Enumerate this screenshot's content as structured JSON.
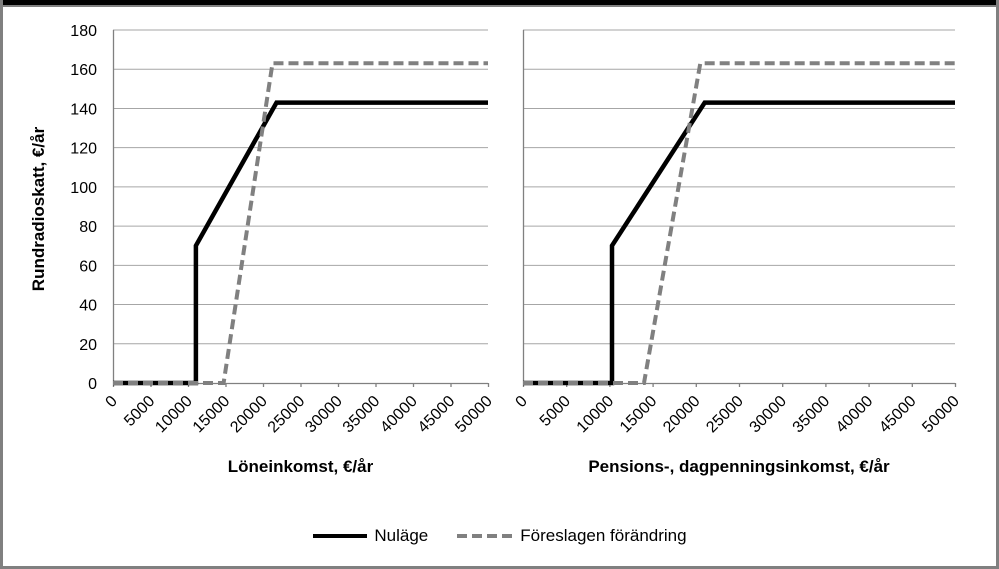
{
  "style": {
    "background": "#ffffff",
    "frame_border": "#808080",
    "top_bar": "#000000",
    "gridline": "#a6a6a6",
    "axis_line": "#808080",
    "text": "#000000",
    "series_current": "#000000",
    "series_proposed": "#808080"
  },
  "legend": {
    "position": "bottom-center"
  },
  "chart_data": [
    {
      "type": "line",
      "panel": "left",
      "title": "",
      "xlabel": "Löneinkomst, €/år",
      "ylabel": "Rundradioskatt, €/år",
      "xlim": [
        0,
        50000
      ],
      "ylim": [
        0,
        180
      ],
      "x_ticks": [
        0,
        5000,
        10000,
        15000,
        20000,
        25000,
        30000,
        35000,
        40000,
        45000,
        50000
      ],
      "y_ticks": [
        0,
        20,
        40,
        60,
        80,
        100,
        120,
        140,
        160,
        180
      ],
      "y_tick_labels_visible": true,
      "grid": true,
      "series": [
        {
          "name": "Nuläge",
          "color": "#000000",
          "dash": "solid",
          "width": 4.5,
          "points": [
            [
              0,
              0
            ],
            [
              11050,
              0
            ],
            [
              11050,
              70
            ],
            [
              21800,
              143
            ],
            [
              50000,
              143
            ]
          ]
        },
        {
          "name": "Föreslagen förändring",
          "color": "#808080",
          "dash": "dashed",
          "width": 4,
          "points": [
            [
              0,
              0
            ],
            [
              14750,
              0
            ],
            [
              21270,
              163
            ],
            [
              50000,
              163
            ]
          ]
        }
      ]
    },
    {
      "type": "line",
      "panel": "right",
      "title": "",
      "xlabel": "Pensions-, dagpenningsinkomst, €/år",
      "ylabel": "",
      "xlim": [
        0,
        50000
      ],
      "ylim": [
        0,
        180
      ],
      "x_ticks": [
        0,
        5000,
        10000,
        15000,
        20000,
        25000,
        30000,
        35000,
        40000,
        45000,
        50000
      ],
      "y_ticks": [
        0,
        20,
        40,
        60,
        80,
        100,
        120,
        140,
        160,
        180
      ],
      "y_tick_labels_visible": false,
      "grid": true,
      "series": [
        {
          "name": "Nuläge",
          "color": "#000000",
          "dash": "solid",
          "width": 4.5,
          "points": [
            [
              0,
              0
            ],
            [
              10300,
              0
            ],
            [
              10300,
              70
            ],
            [
              21030,
              143
            ],
            [
              50000,
              143
            ]
          ]
        },
        {
          "name": "Föreslagen förändring",
          "color": "#808080",
          "dash": "dashed",
          "width": 4,
          "points": [
            [
              0,
              0
            ],
            [
              14000,
              0
            ],
            [
              20520,
              163
            ],
            [
              50000,
              163
            ]
          ]
        }
      ]
    }
  ]
}
